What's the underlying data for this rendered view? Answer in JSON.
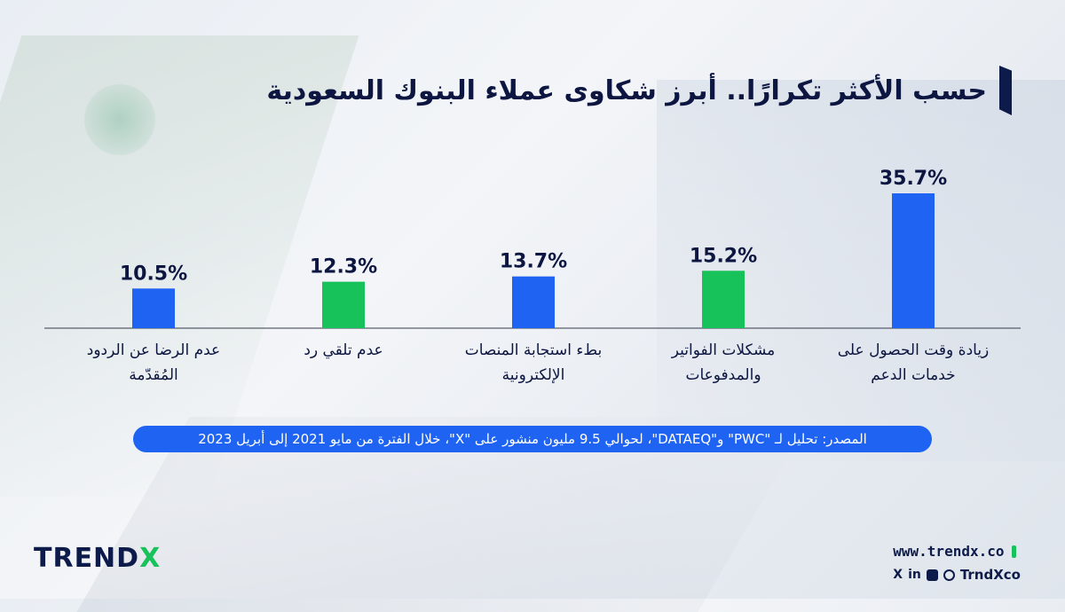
{
  "title": "حسب الأكثر تكرارًا.. أبرز شكاوى عملاء البنوك السعودية",
  "source": "المصدر: تحليل لـ \"PWC\" و\"DATAEQ\"، لحوالي 9.5 مليون منشور على \"X\"، خلال الفترة من مايو 2021 إلى أبريل 2023",
  "brand": {
    "logo_main": "TREND",
    "logo_x": "X",
    "url": "www.trendx.co",
    "social_handle": "TrndXco",
    "social_x": "X",
    "social_in": "in"
  },
  "colors": {
    "blue": "#1f63f2",
    "green": "#18c25a",
    "navy": "#0c1640"
  },
  "chart_data": {
    "type": "bar",
    "direction": "rtl",
    "categories": [
      [
        "زيادة وقت الحصول على",
        "خدمات الدعم"
      ],
      [
        "مشكلات الفواتير",
        "والمدفوعات"
      ],
      [
        "بطء استجابة المنصات",
        "الإلكترونية"
      ],
      [
        "عدم تلقي رد"
      ],
      [
        "عدم الرضا عن الردود",
        "المُقدّمة"
      ]
    ],
    "values": [
      35.7,
      15.2,
      13.7,
      12.3,
      10.5
    ],
    "value_labels": [
      "35.7%",
      "15.2%",
      "13.7%",
      "12.3%",
      "10.5%"
    ],
    "bar_colors": [
      "#1f63f2",
      "#18c25a",
      "#1f63f2",
      "#18c25a",
      "#1f63f2"
    ],
    "ylim": [
      0,
      35.7
    ],
    "grid": false
  }
}
